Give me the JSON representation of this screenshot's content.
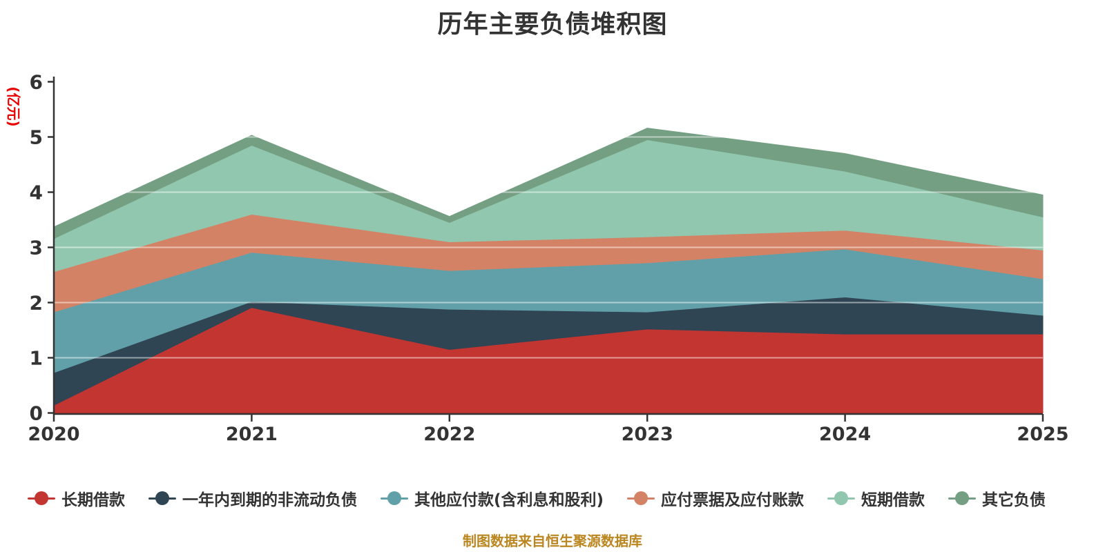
{
  "title": "历年主要负债堆积图",
  "source_note": "制图数据来自恒生聚源数据库",
  "y_axis": {
    "unit": "(亿元)",
    "ticks": [
      "0",
      "1",
      "2",
      "3",
      "4",
      "5",
      "6"
    ],
    "min": 0,
    "max": 6,
    "unit_color": "#e60000",
    "axis_color": "#333333"
  },
  "x_axis": {
    "categories": [
      "2020",
      "2021",
      "2022",
      "2023",
      "2024",
      "2025"
    ],
    "axis_color": "#333333"
  },
  "chart_data": {
    "type": "area",
    "stacked": true,
    "title": "历年主要负债堆积图",
    "ylabel": "(亿元)",
    "ylim": [
      0,
      6
    ],
    "grid": true,
    "gridline_color_over_fills": "rgba(255,255,255,0.5)",
    "legend_position": "bottom",
    "x": [
      "2020",
      "2021",
      "2022",
      "2023",
      "2024",
      "2025"
    ],
    "series": [
      {
        "name": "长期借款",
        "color": "#c23531",
        "values": [
          0.14,
          1.91,
          1.15,
          1.52,
          1.43,
          1.43
        ]
      },
      {
        "name": "一年内到期的非流动负债",
        "color": "#2f4554",
        "values": [
          0.59,
          0.11,
          0.73,
          0.31,
          0.67,
          0.34
        ]
      },
      {
        "name": "其他应付款(含利息和股利)",
        "color": "#61a0a8",
        "values": [
          1.1,
          0.89,
          0.7,
          0.89,
          0.87,
          0.66
        ]
      },
      {
        "name": "应付票据及应付账款",
        "color": "#d48265",
        "values": [
          0.73,
          0.69,
          0.52,
          0.47,
          0.34,
          0.52
        ]
      },
      {
        "name": "短期借款",
        "color": "#91c7ae",
        "values": [
          0.6,
          1.25,
          0.35,
          1.76,
          1.07,
          0.6
        ]
      },
      {
        "name": "其它负债",
        "color": "#749f83",
        "values": [
          0.21,
          0.18,
          0.11,
          0.21,
          0.32,
          0.4
        ]
      }
    ],
    "cumulative_tops": {
      "长期借款": [
        0.14,
        1.91,
        1.15,
        1.52,
        1.43,
        1.43
      ],
      "一年内到期的非流动负债": [
        0.73,
        2.02,
        1.88,
        1.83,
        2.1,
        1.77
      ],
      "其他应付款(含利息和股利)": [
        1.83,
        2.91,
        2.58,
        2.72,
        2.97,
        2.43
      ],
      "应付票据及应付账款": [
        2.56,
        3.6,
        3.1,
        3.19,
        3.31,
        2.95
      ],
      "短期借款": [
        3.16,
        4.85,
        3.45,
        4.95,
        4.38,
        3.55
      ],
      "其它负债": [
        3.37,
        5.03,
        3.56,
        5.16,
        4.7,
        3.95
      ]
    }
  },
  "legend": {
    "items": [
      {
        "label": "长期借款",
        "color": "#c23531"
      },
      {
        "label": "一年内到期的非流动负债",
        "color": "#2f4554"
      },
      {
        "label": "其他应付款(含利息和股利)",
        "color": "#61a0a8"
      },
      {
        "label": "应付票据及应付账款",
        "color": "#d48265"
      },
      {
        "label": "短期借款",
        "color": "#91c7ae"
      },
      {
        "label": "其它负债",
        "color": "#749f83"
      }
    ]
  }
}
